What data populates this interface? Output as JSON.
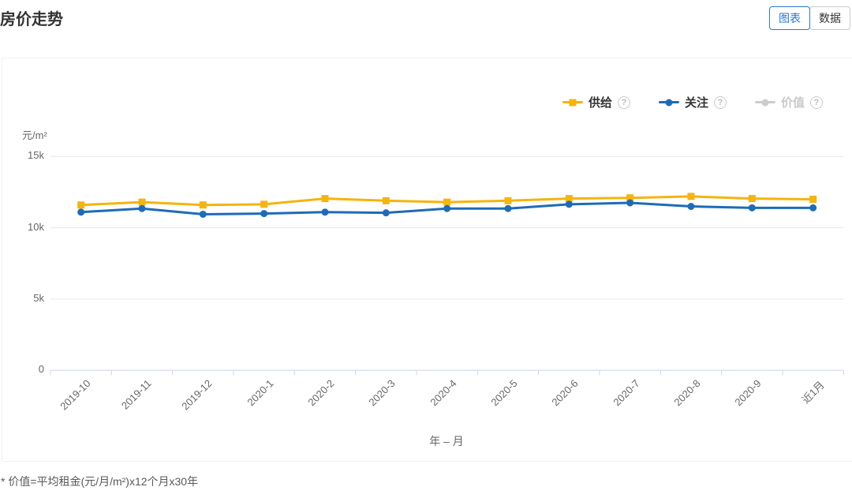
{
  "header": {
    "title": "房价走势",
    "tabs": [
      {
        "label": "图表",
        "active": true
      },
      {
        "label": "数据",
        "active": false
      }
    ]
  },
  "legend_help_icon": "?",
  "footnote": "* 价值=平均租金(元/月/m²)x12个月x30年",
  "chart_data": {
    "type": "line",
    "title": "",
    "xlabel": "年 – 月",
    "ylabel": "元/m²",
    "categories": [
      "2019-10",
      "2019-11",
      "2019-12",
      "2020-1",
      "2020-2",
      "2020-3",
      "2020-4",
      "2020-5",
      "2020-6",
      "2020-7",
      "2020-8",
      "2020-9",
      "近1月"
    ],
    "ylim": [
      0,
      15000
    ],
    "yticks": [
      {
        "value": 0,
        "label": "0"
      },
      {
        "value": 5000,
        "label": "5k"
      },
      {
        "value": 10000,
        "label": "10k"
      },
      {
        "value": 15000,
        "label": "15k"
      }
    ],
    "grid": true,
    "legend_position": "top-right",
    "axis_color": "#ccd6eb",
    "grid_color": "#e7e7e7",
    "series": [
      {
        "name": "供给",
        "color": "#F5B40E",
        "marker": "square",
        "disabled": false,
        "values": [
          11600,
          11800,
          11600,
          11650,
          12050,
          11900,
          11800,
          11900,
          12050,
          12100,
          12200,
          12050,
          12000
        ]
      },
      {
        "name": "关注",
        "color": "#1E6BB8",
        "marker": "circle",
        "disabled": false,
        "values": [
          11100,
          11350,
          10950,
          11000,
          11100,
          11050,
          11350,
          11350,
          11650,
          11750,
          11500,
          11400,
          11400
        ]
      },
      {
        "name": "价值",
        "color": "#CCCCCC",
        "marker": "circle",
        "disabled": true,
        "values": []
      }
    ]
  }
}
